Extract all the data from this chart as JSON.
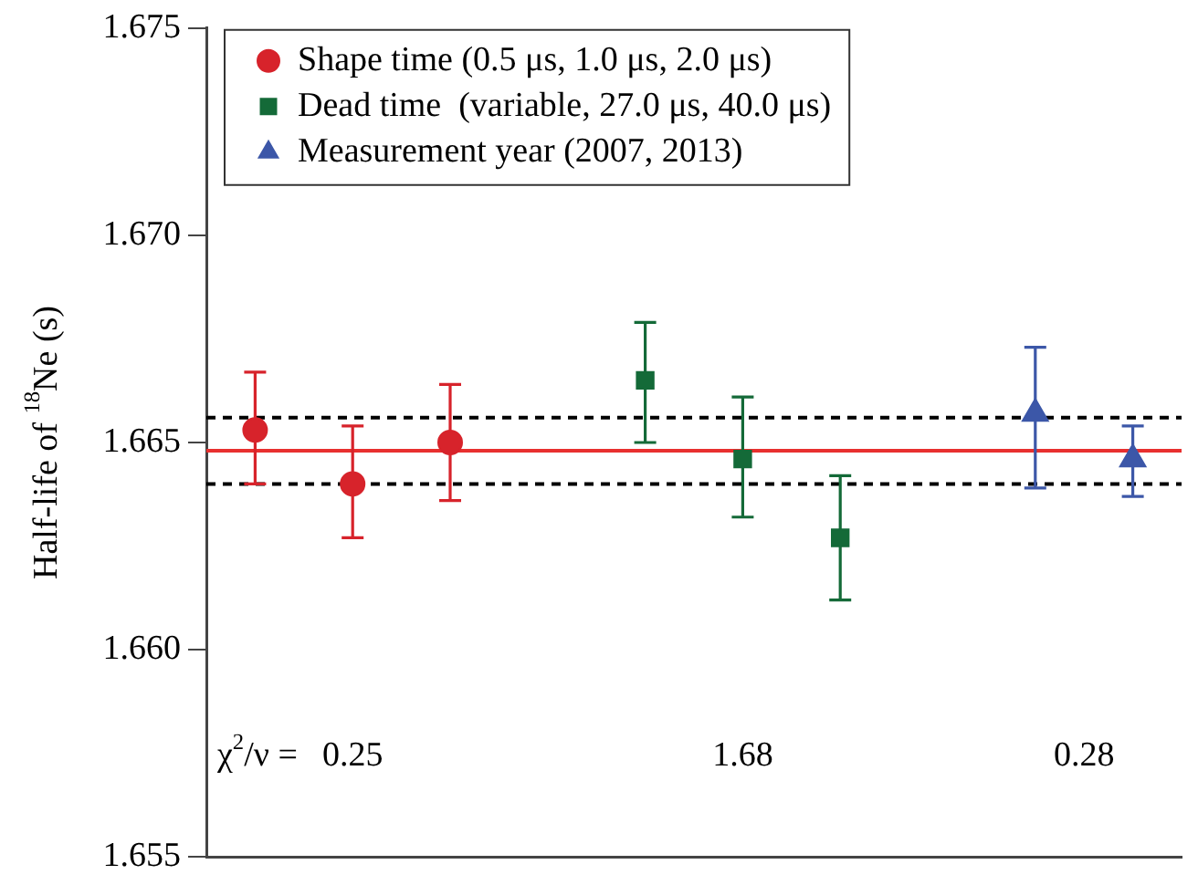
{
  "chart_data": {
    "type": "scatter",
    "ylabel": "Half-life of $^{18}$Ne (s)",
    "categories": [
      null,
      null,
      null,
      null,
      null,
      null,
      null,
      null,
      null,
      null
    ],
    "ylim": [
      1.655,
      1.675
    ],
    "yticks": [
      1.655,
      {
        "value": 1.66,
        "label": "1.660"
      },
      1.665,
      {
        "value": 1.67,
        "label": "1.670"
      },
      1.675
    ],
    "grid": false,
    "legend": "top left",
    "series": [
      {
        "name": "Shape time (0.5 μs, 1.0 μs, 2.0 μs)",
        "color": "#d7232b",
        "marker": "circle",
        "values": [
          1.6653,
          1.664,
          1.665,
          null,
          null,
          null,
          null,
          null,
          null,
          null
        ],
        "errors": [
          [
            1.664,
            1.6667
          ],
          [
            1.6627,
            1.6654
          ],
          [
            1.6636,
            1.6664
          ],
          null,
          null,
          null,
          null,
          null,
          null,
          null
        ]
      },
      {
        "name": "Dead time  (variable, 27.0 μs, 40.0 μs)",
        "color": "#146a38",
        "marker": "square",
        "values": [
          null,
          null,
          null,
          null,
          1.6665,
          1.6646,
          1.6627,
          null,
          null,
          null
        ],
        "errors": [
          null,
          null,
          null,
          null,
          [
            1.665,
            1.6679
          ],
          [
            1.6632,
            1.6661
          ],
          [
            1.6612,
            1.6642
          ],
          null,
          null,
          null
        ]
      },
      {
        "name": "Measurement year (2007, 2013)",
        "color": "#3c57a8",
        "marker": "triangle",
        "values": [
          null,
          null,
          null,
          null,
          null,
          null,
          null,
          null,
          1.6657,
          1.6646
        ],
        "errors": [
          null,
          null,
          null,
          null,
          null,
          null,
          null,
          null,
          [
            1.6639,
            1.6673
          ],
          [
            1.6637,
            1.6654
          ]
        ]
      }
    ],
    "ref_lines": [
      {
        "axis": "y",
        "value": 1.6648,
        "color": "#e8302f",
        "line_style": "solid"
      },
      {
        "axis": "y",
        "value": 1.6656,
        "color": "#000000",
        "line_style": "dashed"
      },
      {
        "axis": "y",
        "value": 1.664,
        "color": "#000000",
        "line_style": "dashed"
      }
    ],
    "annotations": [
      "χ$^{2}$/ν =",
      "0.25",
      "1.68",
      "0.28"
    ]
  }
}
